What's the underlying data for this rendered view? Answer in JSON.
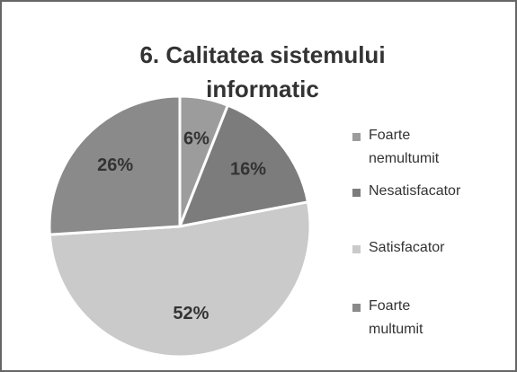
{
  "chart_data": {
    "type": "pie",
    "title": "6. Calitatea sistemului informatic",
    "categories": [
      "Foarte nemultumit",
      "Nesatisfacator",
      "Satisfacator",
      "Foarte multumit"
    ],
    "values": [
      6,
      16,
      52,
      26
    ],
    "value_labels": [
      "6%",
      "16%",
      "52%",
      "26%"
    ],
    "colors": [
      "#9c9c9c",
      "#7c7c7c",
      "#cacaca",
      "#8a8a8a"
    ],
    "legend": "right"
  }
}
